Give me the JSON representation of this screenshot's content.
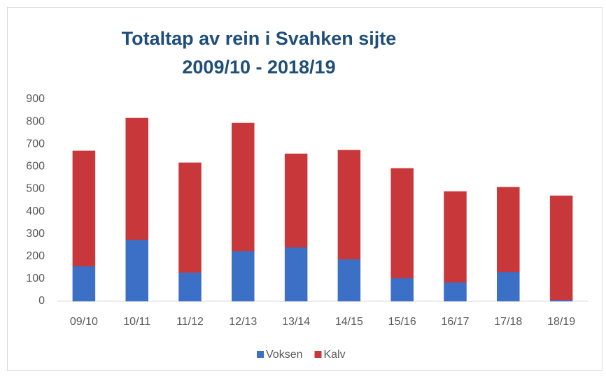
{
  "chart_data": {
    "type": "stacked_bar",
    "title": "Totaltap av rein i Svahken sijte",
    "subtitle": "2009/10 - 2018/19",
    "categories": [
      "09/10",
      "10/11",
      "11/12",
      "12/13",
      "13/14",
      "14/15",
      "15/16",
      "16/17",
      "17/18",
      "18/19"
    ],
    "series": [
      {
        "name": "Voksen",
        "color": "#3c6fc6",
        "values": [
          156,
          274,
          128,
          224,
          240,
          187,
          103,
          84,
          131,
          6
        ]
      },
      {
        "name": "Kalv",
        "color": "#c8383a",
        "values": [
          514,
          542,
          489,
          570,
          417,
          486,
          489,
          405,
          377,
          464
        ]
      }
    ],
    "ylim": [
      0,
      900
    ],
    "yticks": [
      0,
      100,
      200,
      300,
      400,
      500,
      600,
      700,
      800,
      900
    ],
    "grid": false,
    "legend": "bottom"
  }
}
